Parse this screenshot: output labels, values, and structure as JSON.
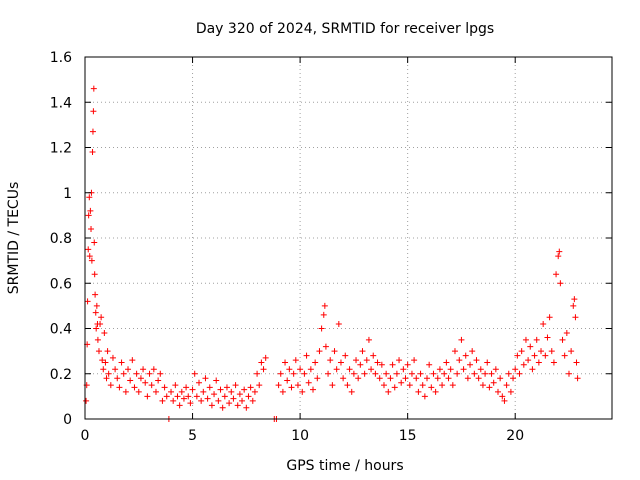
{
  "chart_data": {
    "type": "scatter",
    "title": "Day 320 of 2024, SRMTID for receiver lpgs",
    "xlabel": "GPS time / hours",
    "ylabel": "SRMTID / TECUs",
    "xlim": [
      0,
      24.5
    ],
    "ylim": [
      0,
      1.6
    ],
    "xticks": [
      0,
      5,
      10,
      15,
      20
    ],
    "xtick_labels": [
      "0",
      "5",
      "10",
      "15",
      "20"
    ],
    "yticks": [
      0,
      0.2,
      0.4,
      0.6,
      0.8,
      1.0,
      1.2,
      1.4,
      1.6
    ],
    "ytick_labels": [
      "0",
      "0.2",
      "0.4",
      "0.6",
      "0.8",
      "1",
      "1.2",
      "1.4",
      "1.6"
    ],
    "grid": true,
    "marker": "plus",
    "color": "#ff0000",
    "series": [
      {
        "name": "SRMTID",
        "points": [
          [
            0.05,
            0.08
          ],
          [
            0.08,
            0.15
          ],
          [
            0.1,
            0.33
          ],
          [
            0.12,
            0.52
          ],
          [
            0.15,
            0.75
          ],
          [
            0.17,
            0.9
          ],
          [
            0.2,
            0.98
          ],
          [
            0.22,
            0.72
          ],
          [
            0.25,
            0.92
          ],
          [
            0.28,
            0.84
          ],
          [
            0.3,
            1.0
          ],
          [
            0.32,
            0.7
          ],
          [
            0.35,
            1.18
          ],
          [
            0.37,
            1.27
          ],
          [
            0.39,
            1.36
          ],
          [
            0.41,
            1.46
          ],
          [
            0.43,
            0.78
          ],
          [
            0.45,
            0.64
          ],
          [
            0.47,
            0.55
          ],
          [
            0.5,
            0.47
          ],
          [
            0.52,
            0.4
          ],
          [
            0.55,
            0.5
          ],
          [
            0.58,
            0.42
          ],
          [
            0.6,
            0.35
          ],
          [
            0.65,
            0.3
          ],
          [
            0.7,
            0.42
          ],
          [
            0.75,
            0.45
          ],
          [
            0.8,
            0.26
          ],
          [
            0.85,
            0.22
          ],
          [
            0.9,
            0.38
          ],
          [
            0.95,
            0.25
          ],
          [
            1.0,
            0.18
          ],
          [
            1.05,
            0.3
          ],
          [
            1.1,
            0.2
          ],
          [
            1.2,
            0.15
          ],
          [
            1.3,
            0.27
          ],
          [
            1.4,
            0.22
          ],
          [
            1.5,
            0.18
          ],
          [
            1.6,
            0.14
          ],
          [
            1.7,
            0.25
          ],
          [
            1.8,
            0.2
          ],
          [
            1.9,
            0.12
          ],
          [
            2.0,
            0.22
          ],
          [
            2.1,
            0.17
          ],
          [
            2.2,
            0.26
          ],
          [
            2.3,
            0.14
          ],
          [
            2.4,
            0.2
          ],
          [
            2.5,
            0.12
          ],
          [
            2.6,
            0.18
          ],
          [
            2.7,
            0.22
          ],
          [
            2.8,
            0.16
          ],
          [
            2.9,
            0.1
          ],
          [
            3.0,
            0.2
          ],
          [
            3.1,
            0.15
          ],
          [
            3.2,
            0.22
          ],
          [
            3.3,
            0.12
          ],
          [
            3.4,
            0.17
          ],
          [
            3.5,
            0.2
          ],
          [
            3.6,
            0.08
          ],
          [
            3.7,
            0.14
          ],
          [
            3.8,
            0.1
          ],
          [
            3.9,
            0.0
          ],
          [
            4.0,
            0.12
          ],
          [
            4.1,
            0.08
          ],
          [
            4.2,
            0.15
          ],
          [
            4.3,
            0.1
          ],
          [
            4.4,
            0.06
          ],
          [
            4.5,
            0.12
          ],
          [
            4.6,
            0.09
          ],
          [
            4.7,
            0.14
          ],
          [
            4.8,
            0.1
          ],
          [
            4.9,
            0.07
          ],
          [
            5.0,
            0.13
          ],
          [
            5.1,
            0.2
          ],
          [
            5.2,
            0.1
          ],
          [
            5.3,
            0.16
          ],
          [
            5.4,
            0.08
          ],
          [
            5.5,
            0.12
          ],
          [
            5.6,
            0.18
          ],
          [
            5.7,
            0.09
          ],
          [
            5.8,
            0.14
          ],
          [
            5.9,
            0.06
          ],
          [
            6.0,
            0.11
          ],
          [
            6.1,
            0.17
          ],
          [
            6.2,
            0.08
          ],
          [
            6.3,
            0.13
          ],
          [
            6.4,
            0.05
          ],
          [
            6.5,
            0.1
          ],
          [
            6.6,
            0.14
          ],
          [
            6.7,
            0.07
          ],
          [
            6.8,
            0.12
          ],
          [
            6.9,
            0.09
          ],
          [
            7.0,
            0.15
          ],
          [
            7.1,
            0.06
          ],
          [
            7.2,
            0.11
          ],
          [
            7.3,
            0.08
          ],
          [
            7.4,
            0.13
          ],
          [
            7.5,
            0.05
          ],
          [
            7.6,
            0.1
          ],
          [
            7.7,
            0.14
          ],
          [
            7.8,
            0.08
          ],
          [
            7.9,
            0.12
          ],
          [
            8.0,
            0.2
          ],
          [
            8.1,
            0.15
          ],
          [
            8.2,
            0.25
          ],
          [
            8.3,
            0.22
          ],
          [
            8.4,
            0.27
          ],
          [
            8.8,
            0.0
          ],
          [
            8.9,
            0.0
          ],
          [
            9.0,
            0.15
          ],
          [
            9.1,
            0.2
          ],
          [
            9.2,
            0.12
          ],
          [
            9.3,
            0.25
          ],
          [
            9.4,
            0.17
          ],
          [
            9.5,
            0.22
          ],
          [
            9.6,
            0.14
          ],
          [
            9.7,
            0.2
          ],
          [
            9.8,
            0.26
          ],
          [
            9.9,
            0.15
          ],
          [
            10.0,
            0.22
          ],
          [
            10.1,
            0.12
          ],
          [
            10.2,
            0.2
          ],
          [
            10.3,
            0.28
          ],
          [
            10.4,
            0.16
          ],
          [
            10.5,
            0.22
          ],
          [
            10.6,
            0.13
          ],
          [
            10.7,
            0.25
          ],
          [
            10.8,
            0.18
          ],
          [
            10.9,
            0.3
          ],
          [
            11.0,
            0.4
          ],
          [
            11.1,
            0.46
          ],
          [
            11.15,
            0.5
          ],
          [
            11.2,
            0.32
          ],
          [
            11.3,
            0.2
          ],
          [
            11.4,
            0.26
          ],
          [
            11.5,
            0.15
          ],
          [
            11.6,
            0.3
          ],
          [
            11.7,
            0.22
          ],
          [
            11.8,
            0.42
          ],
          [
            11.9,
            0.25
          ],
          [
            12.0,
            0.18
          ],
          [
            12.1,
            0.28
          ],
          [
            12.2,
            0.15
          ],
          [
            12.3,
            0.22
          ],
          [
            12.4,
            0.12
          ],
          [
            12.5,
            0.2
          ],
          [
            12.6,
            0.26
          ],
          [
            12.7,
            0.18
          ],
          [
            12.8,
            0.24
          ],
          [
            12.9,
            0.3
          ],
          [
            13.0,
            0.2
          ],
          [
            13.1,
            0.26
          ],
          [
            13.2,
            0.35
          ],
          [
            13.3,
            0.22
          ],
          [
            13.4,
            0.28
          ],
          [
            13.5,
            0.2
          ],
          [
            13.6,
            0.25
          ],
          [
            13.7,
            0.18
          ],
          [
            13.8,
            0.24
          ],
          [
            13.9,
            0.15
          ],
          [
            14.0,
            0.2
          ],
          [
            14.1,
            0.12
          ],
          [
            14.2,
            0.18
          ],
          [
            14.3,
            0.24
          ],
          [
            14.4,
            0.14
          ],
          [
            14.5,
            0.2
          ],
          [
            14.6,
            0.26
          ],
          [
            14.7,
            0.16
          ],
          [
            14.8,
            0.22
          ],
          [
            14.9,
            0.18
          ],
          [
            15.0,
            0.24
          ],
          [
            15.1,
            0.15
          ],
          [
            15.2,
            0.2
          ],
          [
            15.3,
            0.26
          ],
          [
            15.4,
            0.18
          ],
          [
            15.5,
            0.12
          ],
          [
            15.6,
            0.2
          ],
          [
            15.7,
            0.15
          ],
          [
            15.8,
            0.1
          ],
          [
            15.9,
            0.18
          ],
          [
            16.0,
            0.24
          ],
          [
            16.1,
            0.14
          ],
          [
            16.2,
            0.2
          ],
          [
            16.3,
            0.12
          ],
          [
            16.4,
            0.18
          ],
          [
            16.5,
            0.22
          ],
          [
            16.6,
            0.15
          ],
          [
            16.7,
            0.2
          ],
          [
            16.8,
            0.25
          ],
          [
            16.9,
            0.18
          ],
          [
            17.0,
            0.22
          ],
          [
            17.1,
            0.15
          ],
          [
            17.2,
            0.3
          ],
          [
            17.3,
            0.2
          ],
          [
            17.4,
            0.26
          ],
          [
            17.5,
            0.35
          ],
          [
            17.6,
            0.22
          ],
          [
            17.7,
            0.28
          ],
          [
            17.8,
            0.18
          ],
          [
            17.9,
            0.24
          ],
          [
            18.0,
            0.3
          ],
          [
            18.1,
            0.2
          ],
          [
            18.2,
            0.26
          ],
          [
            18.3,
            0.18
          ],
          [
            18.4,
            0.22
          ],
          [
            18.5,
            0.15
          ],
          [
            18.6,
            0.2
          ],
          [
            18.7,
            0.25
          ],
          [
            18.8,
            0.14
          ],
          [
            18.9,
            0.2
          ],
          [
            19.0,
            0.16
          ],
          [
            19.1,
            0.22
          ],
          [
            19.2,
            0.12
          ],
          [
            19.3,
            0.18
          ],
          [
            19.4,
            0.1
          ],
          [
            19.5,
            0.08
          ],
          [
            19.6,
            0.15
          ],
          [
            19.7,
            0.2
          ],
          [
            19.8,
            0.12
          ],
          [
            19.9,
            0.18
          ],
          [
            20.0,
            0.22
          ],
          [
            20.1,
            0.28
          ],
          [
            20.2,
            0.2
          ],
          [
            20.3,
            0.3
          ],
          [
            20.4,
            0.24
          ],
          [
            20.5,
            0.35
          ],
          [
            20.6,
            0.26
          ],
          [
            20.7,
            0.32
          ],
          [
            20.8,
            0.22
          ],
          [
            20.9,
            0.28
          ],
          [
            21.0,
            0.35
          ],
          [
            21.1,
            0.25
          ],
          [
            21.2,
            0.3
          ],
          [
            21.3,
            0.42
          ],
          [
            21.4,
            0.28
          ],
          [
            21.5,
            0.36
          ],
          [
            21.6,
            0.45
          ],
          [
            21.7,
            0.3
          ],
          [
            21.8,
            0.25
          ],
          [
            21.9,
            0.64
          ],
          [
            22.0,
            0.72
          ],
          [
            22.05,
            0.74
          ],
          [
            22.1,
            0.6
          ],
          [
            22.2,
            0.35
          ],
          [
            22.3,
            0.28
          ],
          [
            22.4,
            0.38
          ],
          [
            22.5,
            0.2
          ],
          [
            22.6,
            0.3
          ],
          [
            22.7,
            0.5
          ],
          [
            22.75,
            0.53
          ],
          [
            22.8,
            0.45
          ],
          [
            22.85,
            0.25
          ],
          [
            22.9,
            0.18
          ]
        ]
      }
    ]
  }
}
